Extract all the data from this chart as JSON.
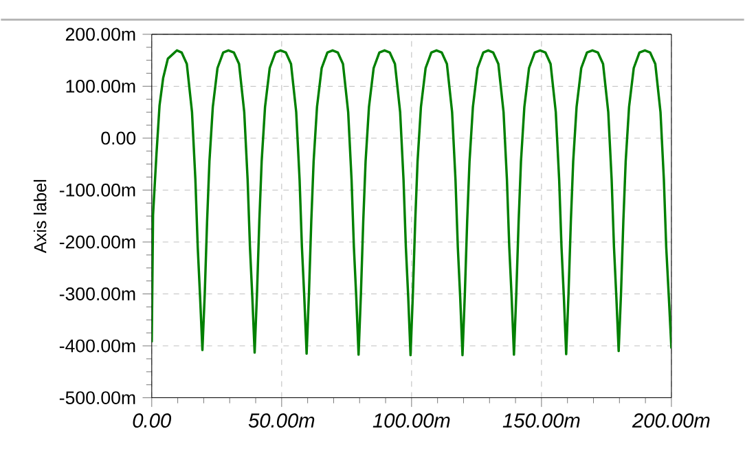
{
  "chart_data": {
    "type": "line",
    "ylabel": "Axis label",
    "xlim": [
      0,
      200
    ],
    "ylim": [
      -500,
      200
    ],
    "xticks": [
      {
        "value": 0,
        "label": "0.00"
      },
      {
        "value": 50,
        "label": "50.00m"
      },
      {
        "value": 100,
        "label": "100.00m"
      },
      {
        "value": 150,
        "label": "150.00m"
      },
      {
        "value": 200,
        "label": "200.00m"
      }
    ],
    "yticks": [
      {
        "value": -500,
        "label": "-500.00m"
      },
      {
        "value": -400,
        "label": "-400.00m"
      },
      {
        "value": -300,
        "label": "-300.00m"
      },
      {
        "value": -200,
        "label": "-200.00m"
      },
      {
        "value": -100,
        "label": "-100.00m"
      },
      {
        "value": 0,
        "label": "0.00"
      },
      {
        "value": 100,
        "label": "100.00m"
      },
      {
        "value": 200,
        "label": "200.00m"
      }
    ],
    "grid": true,
    "marker": "none",
    "line_style": "solid",
    "series": [
      {
        "color": "#008000",
        "x": [
          0,
          0.5,
          1.8,
          3.0,
          4.4,
          6.2,
          9.7,
          11.5,
          13.5,
          15.5,
          16.8,
          17.7,
          18.6,
          19.5,
          20.4,
          21.3,
          22.2,
          23.5,
          25.3,
          27.5,
          29.5,
          31.6,
          33.6,
          35.6,
          36.9,
          37.8,
          38.7,
          39.6,
          40.5,
          41.4,
          42.3,
          43.6,
          45.4,
          47.6,
          49.6,
          51.6,
          53.6,
          55.6,
          56.9,
          57.8,
          58.7,
          59.6,
          60.5,
          61.4,
          62.3,
          63.6,
          65.4,
          67.6,
          69.6,
          71.6,
          73.6,
          75.6,
          76.9,
          77.8,
          78.7,
          79.6,
          80.5,
          81.4,
          82.3,
          83.6,
          85.4,
          87.6,
          89.6,
          91.6,
          93.6,
          95.6,
          96.9,
          97.8,
          98.7,
          99.6,
          100.5,
          101.4,
          102.3,
          103.6,
          105.4,
          107.6,
          109.6,
          111.6,
          113.6,
          115.6,
          116.9,
          117.8,
          118.7,
          119.6,
          120.5,
          121.4,
          122.3,
          123.6,
          125.4,
          127.6,
          129.5,
          131.4,
          133.4,
          135.4,
          136.7,
          137.6,
          138.5,
          139.4,
          140.3,
          141.2,
          142.1,
          143.4,
          145.2,
          147.4,
          149.5,
          151.5,
          153.5,
          155.5,
          156.8,
          157.7,
          158.6,
          159.5,
          160.4,
          161.3,
          162.2,
          163.5,
          165.3,
          167.5,
          169.6,
          171.7,
          173.7,
          175.7,
          177.0,
          177.9,
          178.8,
          179.7,
          180.6,
          181.5,
          182.4,
          183.7,
          185.5,
          187.7,
          189.8,
          191.8,
          193.8,
          195.8,
          197.1,
          198.0,
          199.0,
          200
        ],
        "values": [
          -393,
          -148,
          -32,
          63,
          116,
          153,
          169,
          165,
          143,
          50,
          -80,
          -210,
          -305,
          -408,
          -300,
          -160,
          -45,
          60,
          135,
          165,
          169,
          165,
          143,
          50,
          -80,
          -210,
          -305,
          -413,
          -300,
          -160,
          -45,
          60,
          135,
          165,
          169,
          165,
          143,
          50,
          -80,
          -210,
          -305,
          -415,
          -300,
          -160,
          -45,
          60,
          135,
          165,
          169,
          165,
          143,
          50,
          -80,
          -210,
          -305,
          -417,
          -300,
          -160,
          -45,
          60,
          135,
          165,
          169,
          165,
          143,
          50,
          -80,
          -210,
          -305,
          -418,
          -300,
          -160,
          -45,
          60,
          135,
          165,
          169,
          165,
          143,
          50,
          -80,
          -210,
          -305,
          -418,
          -300,
          -160,
          -45,
          60,
          135,
          165,
          169,
          165,
          143,
          50,
          -80,
          -210,
          -305,
          -417,
          -300,
          -160,
          -45,
          60,
          135,
          165,
          169,
          165,
          143,
          50,
          -80,
          -210,
          -305,
          -416,
          -300,
          -160,
          -45,
          60,
          135,
          165,
          169,
          165,
          143,
          50,
          -80,
          -210,
          -305,
          -410,
          -300,
          -160,
          -45,
          60,
          135,
          165,
          169,
          165,
          143,
          50,
          -80,
          -210,
          -305,
          -405
        ]
      }
    ]
  }
}
